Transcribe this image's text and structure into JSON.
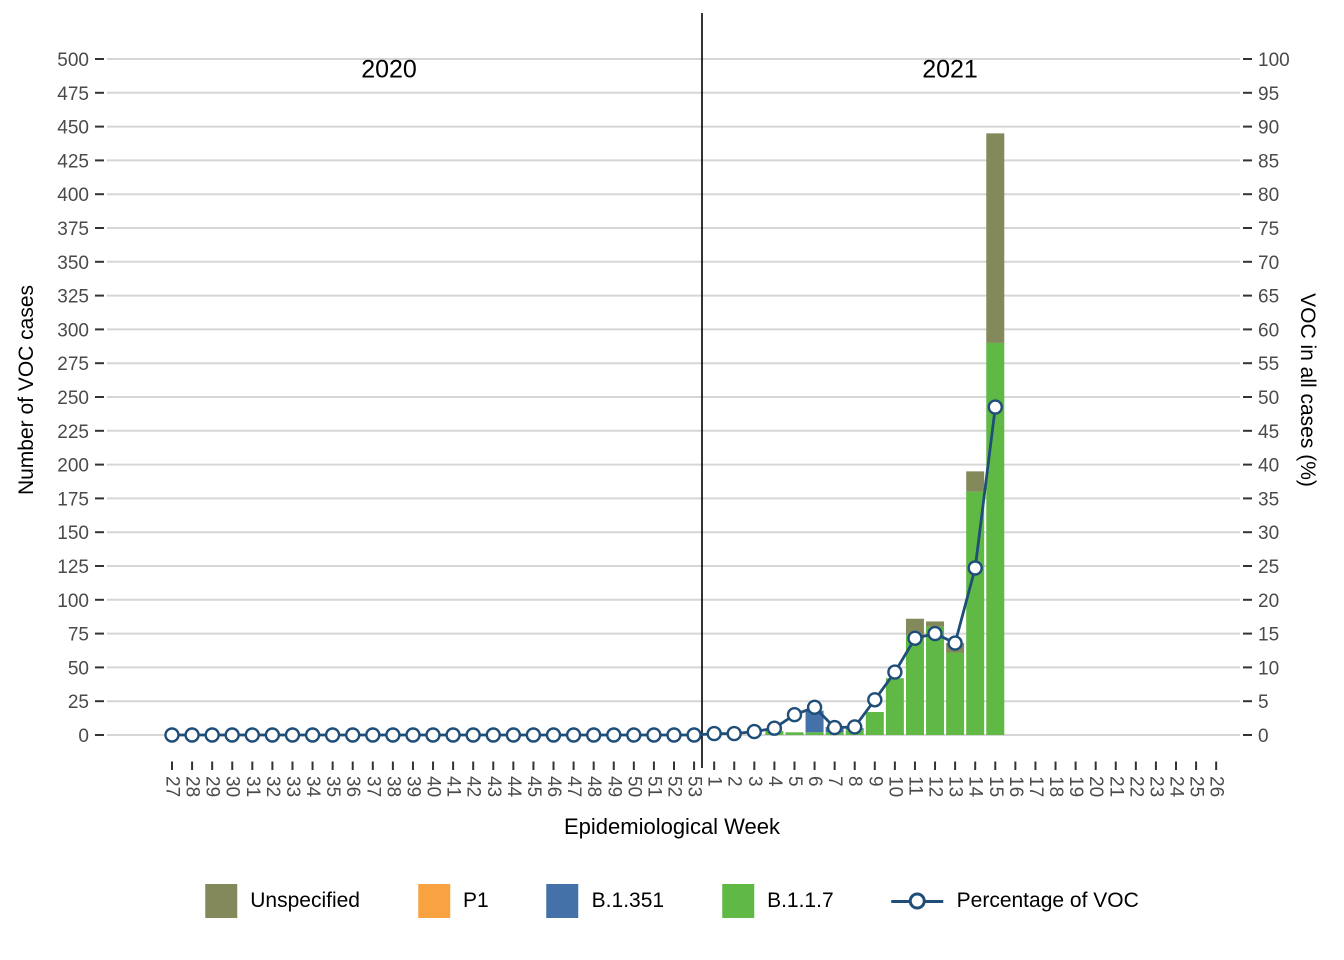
{
  "chart_data": {
    "type": "combo-stacked-bar-line",
    "x": {
      "title": "Epidemiological Week",
      "year_sections": [
        {
          "label": "2020",
          "weeks": "27-53"
        },
        {
          "label": "2021",
          "weeks": "1-26"
        }
      ],
      "weeks": [
        "27",
        "28",
        "29",
        "30",
        "31",
        "32",
        "33",
        "34",
        "35",
        "36",
        "37",
        "38",
        "39",
        "40",
        "41",
        "42",
        "43",
        "44",
        "45",
        "46",
        "47",
        "48",
        "49",
        "50",
        "51",
        "52",
        "53",
        "1",
        "2",
        "3",
        "4",
        "5",
        "6",
        "7",
        "8",
        "9",
        "10",
        "11",
        "12",
        "13",
        "14",
        "15",
        "16",
        "17",
        "18",
        "19",
        "20",
        "21",
        "22",
        "23",
        "24",
        "25",
        "26"
      ]
    },
    "y_left": {
      "title": "Number of VOC cases",
      "min": 0,
      "max": 500,
      "step": 25
    },
    "y_right": {
      "title": "VOC in all cases (%)",
      "min": 0,
      "max": 100,
      "step": 5
    },
    "grid": {
      "horizontal": true,
      "vertical": false,
      "gridline_color": "#D6D6D6"
    },
    "bar_series": [
      {
        "name": "B.1.1.7",
        "color": "#5FB944",
        "values": [
          0,
          0,
          0,
          0,
          0,
          0,
          0,
          0,
          0,
          0,
          0,
          0,
          0,
          0,
          0,
          0,
          0,
          0,
          0,
          0,
          0,
          0,
          0,
          0,
          0,
          0,
          0,
          0,
          0,
          0,
          3,
          2,
          2,
          2,
          4,
          17,
          42,
          74,
          80,
          61,
          180,
          290,
          0,
          0,
          0,
          0,
          0,
          0,
          0,
          0,
          0,
          0,
          0
        ]
      },
      {
        "name": "B.1.351",
        "color": "#4472A8",
        "values": [
          0,
          0,
          0,
          0,
          0,
          0,
          0,
          0,
          0,
          0,
          0,
          0,
          0,
          0,
          0,
          0,
          0,
          0,
          0,
          0,
          0,
          0,
          0,
          0,
          0,
          0,
          0,
          0,
          0,
          0,
          0,
          0,
          16,
          4,
          1,
          0,
          0,
          0,
          0,
          0,
          0,
          0,
          0,
          0,
          0,
          0,
          0,
          0,
          0,
          0,
          0,
          0,
          0
        ]
      },
      {
        "name": "P1",
        "color": "#F9A242",
        "values": [
          0,
          0,
          0,
          0,
          0,
          0,
          0,
          0,
          0,
          0,
          0,
          0,
          0,
          0,
          0,
          0,
          0,
          0,
          0,
          0,
          0,
          0,
          0,
          0,
          0,
          0,
          0,
          0,
          0,
          0,
          0,
          0,
          0,
          0,
          0,
          0,
          0,
          0,
          0,
          0,
          0,
          0,
          0,
          0,
          0,
          0,
          0,
          0,
          0,
          0,
          0,
          0,
          0
        ]
      },
      {
        "name": "Unspecified",
        "color": "#84895B",
        "values": [
          0,
          0,
          0,
          0,
          0,
          0,
          0,
          0,
          0,
          0,
          0,
          0,
          0,
          0,
          0,
          0,
          0,
          0,
          0,
          0,
          0,
          0,
          0,
          0,
          0,
          0,
          0,
          0,
          0,
          0,
          0,
          0,
          0,
          0,
          0,
          0,
          0,
          12,
          4,
          7,
          15,
          155,
          0,
          0,
          0,
          0,
          0,
          0,
          0,
          0,
          0,
          0,
          0
        ]
      }
    ],
    "line_series": {
      "name": "Percentage of VOC",
      "color": "#1F4E79",
      "marker": "open-circle",
      "values": [
        0,
        0,
        0,
        0,
        0,
        0,
        0,
        0,
        0,
        0,
        0,
        0,
        0,
        0,
        0,
        0,
        0,
        0,
        0,
        0,
        0,
        0,
        0,
        0,
        0,
        0,
        0,
        0.2,
        0.2,
        0.5,
        1,
        3,
        4.1,
        1.1,
        1.2,
        5.2,
        9.3,
        14.3,
        15,
        13.6,
        24.7,
        48.5,
        null,
        null,
        null,
        null,
        null,
        null,
        null,
        null,
        null,
        null,
        null
      ]
    },
    "divider": {
      "between": [
        "53",
        "1"
      ],
      "color": "#000000"
    },
    "legend": [
      {
        "label": "Unspecified",
        "color": "#84895B",
        "type": "swatch"
      },
      {
        "label": "P1",
        "color": "#F9A242",
        "type": "swatch"
      },
      {
        "label": "B.1.351",
        "color": "#4472A8",
        "type": "swatch"
      },
      {
        "label": "B.1.1.7",
        "color": "#5FB944",
        "type": "swatch"
      },
      {
        "label": "Percentage of VOC",
        "color": "#1F4E79",
        "type": "line-marker"
      }
    ],
    "tick_label_color": "#4A4A4A",
    "tick_mark_color": "#333333"
  }
}
